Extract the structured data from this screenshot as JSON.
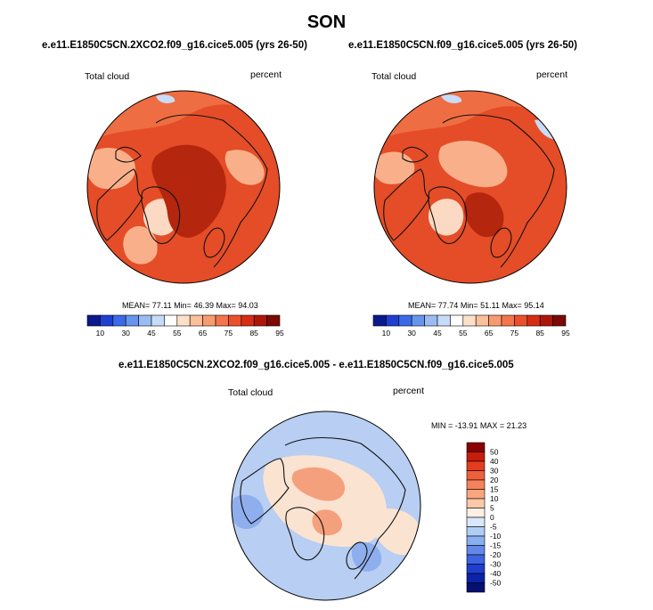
{
  "figure": {
    "season": "SON"
  },
  "panels": [
    {
      "title": "e.e11.E1850C5CN.2XCO2.f09_g16.cice5.005 (yrs 26-50)",
      "left_label": "Total cloud",
      "right_label": "percent",
      "stats": {
        "mean_label": "MEAN=",
        "mean": "77.11",
        "min_label": "Min=",
        "min": "46.39",
        "max_label": "Max=",
        "max": "94.03"
      }
    },
    {
      "title": "e.e11.E1850C5CN.f09_g16.cice5.005 (yrs 26-50)",
      "left_label": "Total cloud",
      "right_label": "percent",
      "stats": {
        "mean_label": "MEAN=",
        "mean": "77.74",
        "min_label": "Min=",
        "min": "51.11",
        "max_label": "Max=",
        "max": "95.14"
      }
    }
  ],
  "diff_panel": {
    "title": "e.e11.E1850C5CN.2XCO2.f09_g16.cice5.005 - e.e11.E1850C5CN.f09_g16.cice5.005",
    "left_label": "Total cloud",
    "right_label": "percent",
    "stats": {
      "min_label": "MIN =",
      "min": "-13.91",
      "max_label": "MAX =",
      "max": "21.23"
    }
  },
  "colorbars": {
    "absolute": {
      "orientation": "horizontal",
      "tick_labels": [
        "10",
        "30",
        "45",
        "55",
        "65",
        "75",
        "85",
        "95"
      ],
      "colors": [
        "#0a1a8c",
        "#1f3fd1",
        "#3a6ae8",
        "#6795ee",
        "#9bbcf2",
        "#c6dbf7",
        "#ffffff",
        "#fde0c8",
        "#fbbf9a",
        "#f89b70",
        "#f4754a",
        "#ea512b",
        "#d52e15",
        "#ad1708",
        "#7a0a03"
      ]
    },
    "difference": {
      "orientation": "vertical",
      "tick_labels": [
        "50",
        "40",
        "30",
        "20",
        "15",
        "10",
        "5",
        "0",
        "-5",
        "-10",
        "-15",
        "-20",
        "-30",
        "-40",
        "-50"
      ],
      "colors": [
        "#8b0000",
        "#c51d0c",
        "#e43c1e",
        "#f05f3c",
        "#f5825b",
        "#f9a67f",
        "#fcc9a8",
        "#fff0e3",
        "#d9e7fb",
        "#b0cdf6",
        "#8aaff0",
        "#6289ea",
        "#3d63e2",
        "#1f3dcf",
        "#0b23a8",
        "#051072"
      ]
    }
  },
  "map_colors": {
    "ocean_abs_a": "#e44d27",
    "ocean_abs_b": "#ef6d42",
    "warm_pale": "#f9b08a",
    "very_pale": "#fbd9c2",
    "deep_red": "#b4260e",
    "blue_light": "#c9dbf6",
    "diff_base": "#b8cef2",
    "diff_pale": "#fbe3d2",
    "diff_warm": "#f5a07c",
    "diff_blue": "#8eaeee",
    "coast": "#111111"
  }
}
